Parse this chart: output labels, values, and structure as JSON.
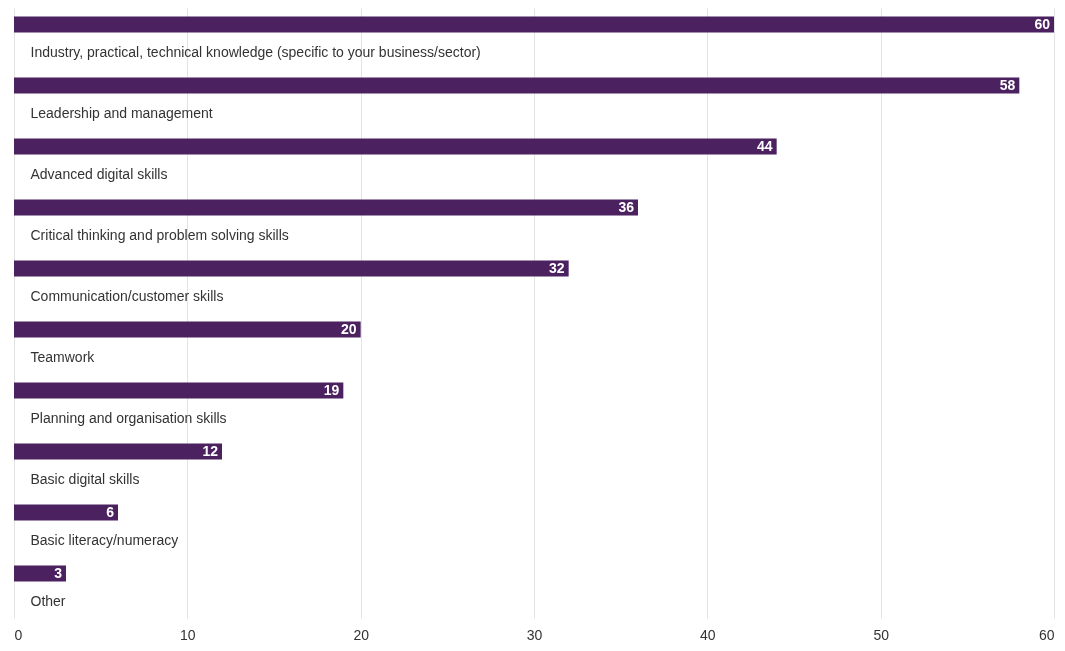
{
  "chart_data": {
    "type": "bar",
    "orientation": "horizontal",
    "categories": [
      "Industry, practical, technical knowledge (specific to your business/sector)",
      "Leadership and management",
      "Advanced digital skills",
      "Critical thinking and problem solving skills",
      "Communication/customer skills",
      "Teamwork",
      "Planning and organisation skills",
      "Basic digital skills",
      "Basic literacy/numeracy",
      "Other"
    ],
    "values": [
      60,
      58,
      44,
      36,
      32,
      20,
      19,
      12,
      6,
      3
    ],
    "color": "#4b2160",
    "xlim": [
      0,
      60
    ],
    "xticks": [
      0,
      10,
      20,
      30,
      40,
      50,
      60
    ],
    "grid": "x",
    "data_labels": true
  }
}
